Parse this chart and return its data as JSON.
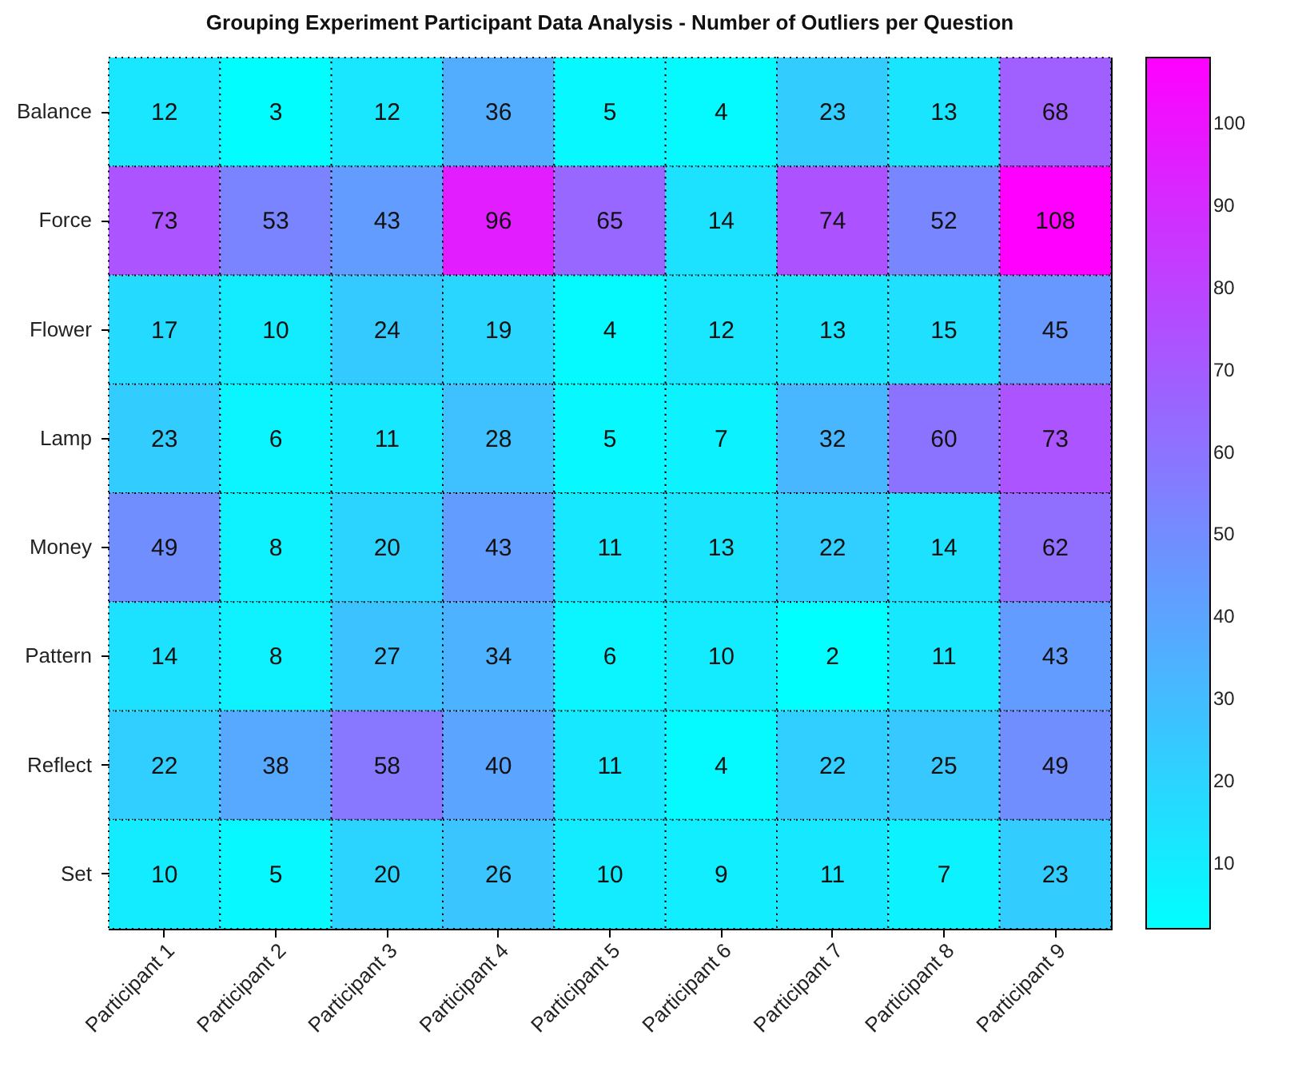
{
  "chart_data": {
    "type": "heatmap",
    "title": "Grouping Experiment Participant Data Analysis - Number of Outliers per Question",
    "categories": [
      "Participant 1",
      "Participant 2",
      "Participant 3",
      "Participant 4",
      "Participant 5",
      "Participant 6",
      "Participant 7",
      "Participant 8",
      "Participant 9"
    ],
    "y_categories": [
      "Balance",
      "Force",
      "Flower",
      "Lamp",
      "Money",
      "Pattern",
      "Reflect",
      "Set"
    ],
    "cells": [
      [
        12,
        3,
        12,
        36,
        5,
        4,
        23,
        13,
        68
      ],
      [
        73,
        53,
        43,
        96,
        65,
        14,
        74,
        52,
        108
      ],
      [
        17,
        10,
        24,
        19,
        4,
        12,
        13,
        15,
        45
      ],
      [
        23,
        6,
        11,
        28,
        5,
        7,
        32,
        60,
        73
      ],
      [
        49,
        8,
        20,
        43,
        11,
        13,
        22,
        14,
        62
      ],
      [
        14,
        8,
        27,
        34,
        6,
        10,
        2,
        11,
        43
      ],
      [
        22,
        38,
        58,
        40,
        11,
        4,
        22,
        25,
        49
      ],
      [
        10,
        5,
        20,
        26,
        10,
        9,
        11,
        7,
        23
      ]
    ],
    "clim": [
      2,
      108
    ],
    "cticks": [
      10,
      20,
      30,
      40,
      50,
      60,
      70,
      80,
      90,
      100
    ],
    "colors": [
      "#00ffff",
      "#ff00ff"
    ],
    "data_labels": true
  }
}
